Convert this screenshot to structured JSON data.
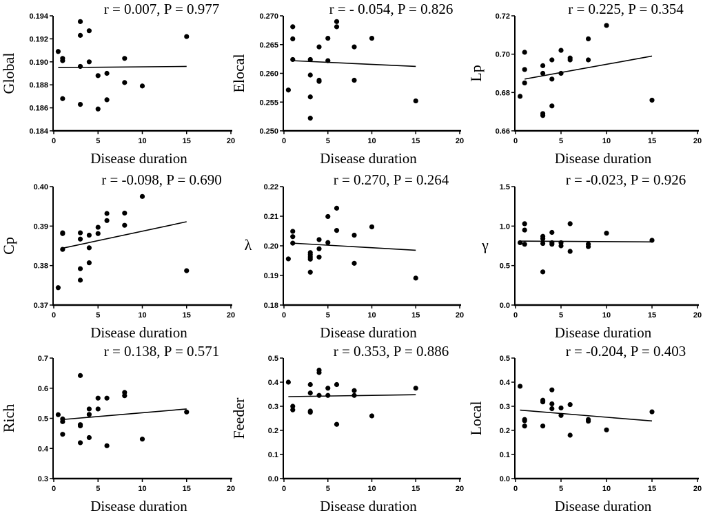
{
  "chart_data": [
    {
      "type": "scatter",
      "title": "r = 0.007, P = 0.977",
      "xlabel": "Disease duration",
      "ylabel": "Global",
      "xlim": [
        0,
        20
      ],
      "ylim": [
        0.184,
        0.194
      ],
      "xticks": [
        "0",
        "5",
        "10",
        "15",
        "20"
      ],
      "yticks": [
        "0.184",
        "0.186",
        "0.188",
        "0.190",
        "0.192",
        "0.194"
      ],
      "points": [
        [
          0.5,
          0.1909
        ],
        [
          1,
          0.1903
        ],
        [
          1,
          0.1901
        ],
        [
          1,
          0.1868
        ],
        [
          3,
          0.1935
        ],
        [
          3,
          0.1923
        ],
        [
          3,
          0.1896
        ],
        [
          3,
          0.1863
        ],
        [
          4,
          0.1927
        ],
        [
          4,
          0.19
        ],
        [
          5,
          0.1888
        ],
        [
          5,
          0.1859
        ],
        [
          6,
          0.189
        ],
        [
          6,
          0.1867
        ],
        [
          8,
          0.1903
        ],
        [
          8,
          0.1882
        ],
        [
          10,
          0.1879
        ],
        [
          15,
          0.1922
        ]
      ],
      "fit": [
        [
          0.5,
          0.1895
        ],
        [
          15,
          0.1896
        ]
      ]
    },
    {
      "type": "scatter",
      "title": "r = - 0.054, P = 0.826",
      "xlabel": "Disease duration",
      "ylabel": "Elocal",
      "xlim": [
        0,
        20
      ],
      "ylim": [
        0.25,
        0.27
      ],
      "xticks": [
        "0",
        "5",
        "10",
        "15",
        "20"
      ],
      "yticks": [
        "0.250",
        "0.255",
        "0.260",
        "0.265",
        "0.270"
      ],
      "points": [
        [
          0.5,
          0.2571
        ],
        [
          1,
          0.2681
        ],
        [
          1,
          0.266
        ],
        [
          1,
          0.2624
        ],
        [
          3,
          0.2624
        ],
        [
          3,
          0.2597
        ],
        [
          3,
          0.2559
        ],
        [
          3,
          0.2522
        ],
        [
          4,
          0.2646
        ],
        [
          4,
          0.2588
        ],
        [
          4,
          0.2586
        ],
        [
          5,
          0.2661
        ],
        [
          5,
          0.2622
        ],
        [
          6,
          0.269
        ],
        [
          6,
          0.2681
        ],
        [
          8,
          0.2646
        ],
        [
          8,
          0.2588
        ],
        [
          10,
          0.2661
        ],
        [
          15,
          0.2552
        ]
      ],
      "fit": [
        [
          1,
          0.2622
        ],
        [
          15,
          0.2612
        ]
      ]
    },
    {
      "type": "scatter",
      "title": "r = 0.225, P = 0.354",
      "xlabel": "Disease duration",
      "ylabel": "Lp",
      "xlim": [
        0,
        20
      ],
      "ylim": [
        0.66,
        0.72
      ],
      "xticks": [
        "0",
        "5",
        "10",
        "15",
        "20"
      ],
      "yticks": [
        "0.66",
        "0.68",
        "0.70",
        "0.72"
      ],
      "points": [
        [
          0.5,
          0.678
        ],
        [
          1,
          0.701
        ],
        [
          1,
          0.692
        ],
        [
          1,
          0.685
        ],
        [
          3,
          0.694
        ],
        [
          3,
          0.69
        ],
        [
          3,
          0.669
        ],
        [
          3,
          0.668
        ],
        [
          4,
          0.697
        ],
        [
          4,
          0.687
        ],
        [
          4,
          0.673
        ],
        [
          5,
          0.702
        ],
        [
          5,
          0.69
        ],
        [
          6,
          0.698
        ],
        [
          6,
          0.697
        ],
        [
          8,
          0.708
        ],
        [
          8,
          0.697
        ],
        [
          10,
          0.715
        ],
        [
          15,
          0.676
        ]
      ],
      "fit": [
        [
          1,
          0.687
        ],
        [
          15,
          0.699
        ]
      ]
    },
    {
      "type": "scatter",
      "title": "r = -0.098, P = 0.690",
      "xlabel": "Disease duration",
      "ylabel": "Cp",
      "xlim": [
        0,
        20
      ],
      "ylim": [
        0.37,
        0.4
      ],
      "xticks": [
        "0",
        "5",
        "10",
        "15",
        "20"
      ],
      "yticks": [
        "0.37",
        "0.38",
        "0.39",
        "0.40"
      ],
      "points": [
        [
          0.5,
          0.3744
        ],
        [
          1,
          0.3883
        ],
        [
          1,
          0.3881
        ],
        [
          1,
          0.3841
        ],
        [
          3,
          0.3883
        ],
        [
          3,
          0.3867
        ],
        [
          3,
          0.3792
        ],
        [
          3,
          0.3763
        ],
        [
          4,
          0.3877
        ],
        [
          4,
          0.3845
        ],
        [
          4,
          0.3807
        ],
        [
          5,
          0.3897
        ],
        [
          5,
          0.3881
        ],
        [
          6,
          0.3932
        ],
        [
          6,
          0.3914
        ],
        [
          8,
          0.3933
        ],
        [
          8,
          0.3902
        ],
        [
          10,
          0.3975
        ],
        [
          15,
          0.3787
        ]
      ],
      "fit": [
        [
          1,
          0.3844
        ],
        [
          15,
          0.3911
        ]
      ]
    },
    {
      "type": "scatter",
      "title": "r = 0.270, P = 0.264",
      "xlabel": "Disease duration",
      "ylabel": "λ",
      "xlim": [
        0,
        20
      ],
      "ylim": [
        0.18,
        0.22
      ],
      "xticks": [
        "0",
        "5",
        "10",
        "15",
        "20"
      ],
      "yticks": [
        "0.18",
        "0.19",
        "0.20",
        "0.21",
        "0.22"
      ],
      "points": [
        [
          0.5,
          0.1956
        ],
        [
          1,
          0.2049
        ],
        [
          1,
          0.2031
        ],
        [
          1,
          0.2009
        ],
        [
          3,
          0.1977
        ],
        [
          3,
          0.197
        ],
        [
          3,
          0.1962
        ],
        [
          3,
          0.1955
        ],
        [
          3,
          0.1911
        ],
        [
          4,
          0.2021
        ],
        [
          4,
          0.199
        ],
        [
          4,
          0.1962
        ],
        [
          5,
          0.2099
        ],
        [
          5,
          0.2011
        ],
        [
          6,
          0.2127
        ],
        [
          6,
          0.2052
        ],
        [
          8,
          0.2036
        ],
        [
          8,
          0.1941
        ],
        [
          10,
          0.2064
        ],
        [
          15,
          0.1891
        ]
      ],
      "fit": [
        [
          1,
          0.2009
        ],
        [
          15,
          0.1985
        ]
      ]
    },
    {
      "type": "scatter",
      "title": "r = -0.023, P = 0.926",
      "xlabel": "Disease duration",
      "ylabel": "γ",
      "xlim": [
        0,
        20
      ],
      "ylim": [
        0,
        1.5
      ],
      "xticks": [
        "0",
        "5",
        "10",
        "15",
        "20"
      ],
      "yticks": [
        "0.0",
        "0.5",
        "1.0",
        "1.5"
      ],
      "points": [
        [
          0.5,
          0.79
        ],
        [
          1,
          1.03
        ],
        [
          1,
          0.95
        ],
        [
          1,
          0.77
        ],
        [
          3,
          0.87
        ],
        [
          3,
          0.84
        ],
        [
          3,
          0.78
        ],
        [
          3,
          0.42
        ],
        [
          4,
          0.92
        ],
        [
          4,
          0.79
        ],
        [
          4,
          0.77
        ],
        [
          5,
          0.79
        ],
        [
          5,
          0.75
        ],
        [
          6,
          1.03
        ],
        [
          6,
          0.68
        ],
        [
          8,
          0.77
        ],
        [
          8,
          0.74
        ],
        [
          10,
          0.91
        ],
        [
          15,
          0.82
        ]
      ],
      "fit": [
        [
          0.5,
          0.81
        ],
        [
          15,
          0.8
        ]
      ]
    },
    {
      "type": "scatter",
      "title": "r = 0.138, P = 0.571",
      "xlabel": "Disease duration",
      "ylabel": "Rich",
      "xlim": [
        0,
        20
      ],
      "ylim": [
        0.3,
        0.7
      ],
      "xticks": [
        "0",
        "5",
        "10",
        "15",
        "20"
      ],
      "yticks": [
        "0.3",
        "0.4",
        "0.5",
        "0.6",
        "0.7"
      ],
      "points": [
        [
          0.5,
          0.512
        ],
        [
          1,
          0.498
        ],
        [
          1,
          0.489
        ],
        [
          1,
          0.447
        ],
        [
          3,
          0.642
        ],
        [
          3,
          0.479
        ],
        [
          3,
          0.475
        ],
        [
          3,
          0.419
        ],
        [
          4,
          0.531
        ],
        [
          4,
          0.513
        ],
        [
          4,
          0.436
        ],
        [
          5,
          0.567
        ],
        [
          5,
          0.531
        ],
        [
          6,
          0.567
        ],
        [
          6,
          0.409
        ],
        [
          8,
          0.586
        ],
        [
          8,
          0.575
        ],
        [
          10,
          0.431
        ],
        [
          15,
          0.521
        ]
      ],
      "fit": [
        [
          1,
          0.496
        ],
        [
          15,
          0.531
        ]
      ]
    },
    {
      "type": "scatter",
      "title": "r = 0.353, P = 0.886",
      "xlabel": "Disease duration",
      "ylabel": "Feeder",
      "xlim": [
        0,
        20
      ],
      "ylim": [
        0,
        0.5
      ],
      "xticks": [
        "0",
        "5",
        "10",
        "15",
        "20"
      ],
      "yticks": [
        "0.0",
        "0.1",
        "0.2",
        "0.3",
        "0.4",
        "0.5"
      ],
      "points": [
        [
          0.5,
          0.4
        ],
        [
          1,
          0.3
        ],
        [
          1,
          0.285
        ],
        [
          3,
          0.39
        ],
        [
          3,
          0.355
        ],
        [
          3,
          0.28
        ],
        [
          3,
          0.275
        ],
        [
          4,
          0.45
        ],
        [
          4,
          0.44
        ],
        [
          4,
          0.345
        ],
        [
          5,
          0.375
        ],
        [
          5,
          0.345
        ],
        [
          6,
          0.39
        ],
        [
          6,
          0.225
        ],
        [
          8,
          0.365
        ],
        [
          8,
          0.345
        ],
        [
          10,
          0.26
        ],
        [
          15,
          0.375
        ]
      ],
      "fit": [
        [
          0.5,
          0.34
        ],
        [
          15,
          0.348
        ]
      ]
    },
    {
      "type": "scatter",
      "title": "r = -0.204, P = 0.403",
      "xlabel": "Disease duration",
      "ylabel": "Local",
      "xlim": [
        0,
        20
      ],
      "ylim": [
        0,
        0.5
      ],
      "xticks": [
        "0",
        "5",
        "10",
        "15",
        "20"
      ],
      "yticks": [
        "0.0",
        "0.1",
        "0.2",
        "0.3",
        "0.4",
        "0.5"
      ],
      "points": [
        [
          0.5,
          0.383
        ],
        [
          1,
          0.245
        ],
        [
          1,
          0.24
        ],
        [
          1,
          0.218
        ],
        [
          3,
          0.325
        ],
        [
          3,
          0.318
        ],
        [
          3,
          0.218
        ],
        [
          4,
          0.368
        ],
        [
          4,
          0.31
        ],
        [
          4,
          0.29
        ],
        [
          5,
          0.293
        ],
        [
          5,
          0.262
        ],
        [
          6,
          0.307
        ],
        [
          6,
          0.18
        ],
        [
          8,
          0.245
        ],
        [
          8,
          0.238
        ],
        [
          10,
          0.202
        ],
        [
          15,
          0.277
        ]
      ],
      "fit": [
        [
          0.5,
          0.284
        ],
        [
          15,
          0.239
        ]
      ]
    }
  ]
}
